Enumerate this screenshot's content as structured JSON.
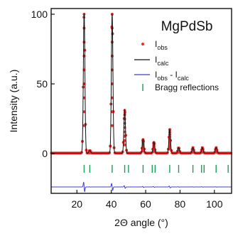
{
  "chart_data": {
    "type": "line",
    "title": "MgPdSb",
    "xlabel": "2Θ angle (°)",
    "ylabel": "Intensity (a.u.)",
    "xlim": [
      5,
      110
    ],
    "ylim": [
      -5,
      105
    ],
    "x_ticks": [
      20,
      40,
      60,
      80,
      100
    ],
    "y_ticks": [
      0,
      50,
      100
    ],
    "grid": false,
    "legend_position": "top-right",
    "legend": [
      {
        "key": "obs",
        "main": "I",
        "sub": "obs",
        "color": "#e83030",
        "marker": "circle"
      },
      {
        "key": "calc",
        "main": "I",
        "sub": "calc",
        "color": "#111111",
        "marker": "line"
      },
      {
        "key": "diff",
        "main": "I",
        "sub": "obs",
        "sep": " - I",
        "sub2": "calc",
        "color": "#3b3bd6",
        "marker": "line"
      },
      {
        "key": "bragg",
        "main": "Bragg reflections",
        "color": "#1a9e5a",
        "marker": "tick"
      }
    ],
    "peaks": [
      {
        "x": 24.2,
        "y": 100
      },
      {
        "x": 27.5,
        "y": 2
      },
      {
        "x": 40.5,
        "y": 100
      },
      {
        "x": 47.8,
        "y": 31
      },
      {
        "x": 58.5,
        "y": 10
      },
      {
        "x": 64.8,
        "y": 8
      },
      {
        "x": 74.0,
        "y": 17
      },
      {
        "x": 79.2,
        "y": 4
      },
      {
        "x": 87.5,
        "y": 4
      },
      {
        "x": 93.0,
        "y": 4
      },
      {
        "x": 101.0,
        "y": 4
      }
    ],
    "bragg_reflections": [
      24.2,
      27.5,
      40.5,
      47.8,
      50.0,
      58.5,
      63.8,
      65.5,
      74.0,
      79.2,
      87.5,
      92.5,
      94.0,
      101.0,
      108.0
    ]
  }
}
